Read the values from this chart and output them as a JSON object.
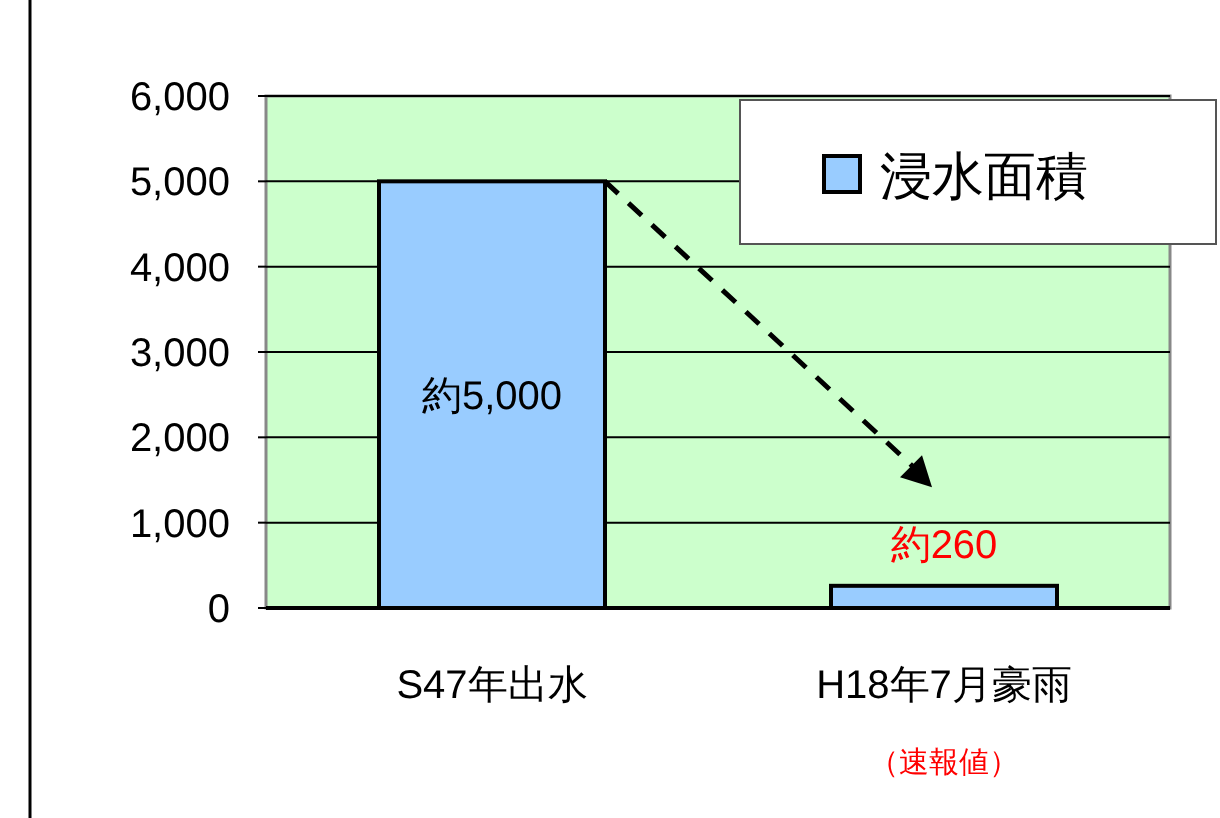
{
  "chart_data": {
    "type": "bar",
    "categories": [
      "S47年出水",
      "H18年7月豪雨"
    ],
    "series": [
      {
        "name": "浸水面積",
        "color": "#99ccff",
        "values": [
          5000,
          260
        ]
      }
    ],
    "value_labels": [
      "約5,000",
      "約260"
    ],
    "ylim": [
      0,
      6000
    ],
    "yticks": [
      {
        "value": 0,
        "label": "0"
      },
      {
        "value": 1000,
        "label": "1,000"
      },
      {
        "value": 2000,
        "label": "2,000"
      },
      {
        "value": 3000,
        "label": "3,000"
      },
      {
        "value": 4000,
        "label": "4,000"
      },
      {
        "value": 5000,
        "label": "5,000"
      },
      {
        "value": 6000,
        "label": "6,000"
      }
    ],
    "grid": "y",
    "legend": "top right",
    "annotations": [
      "（速報値）"
    ]
  }
}
